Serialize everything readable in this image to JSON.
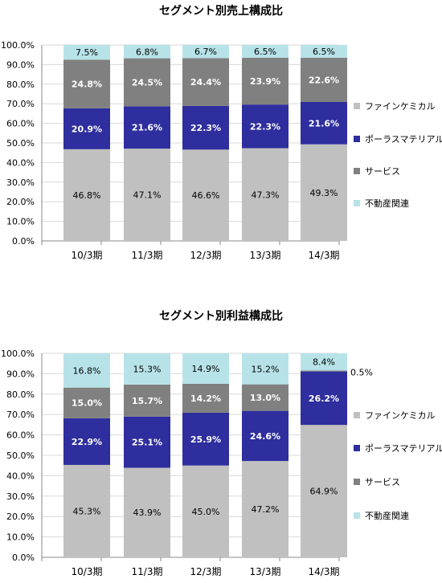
{
  "charts": [
    {
      "title": "セグメント別売上構成比",
      "legend": [
        {
          "label": "ファインケミカル",
          "color": "#c0c0c0"
        },
        {
          "label": "ポーラスマテリアル",
          "color": "#2e2e9e"
        },
        {
          "label": "サービス",
          "color": "#808080"
        },
        {
          "label": "不動産関連",
          "color": "#b7e3e8"
        }
      ]
    },
    {
      "title": "セグメント別利益構成比",
      "legend": [
        {
          "label": "ファインケミカル",
          "color": "#c0c0c0"
        },
        {
          "label": "ポーラスマテリアル",
          "color": "#2e2e9e"
        },
        {
          "label": "サービス",
          "color": "#808080"
        },
        {
          "label": "不動産関連",
          "color": "#b7e3e8"
        }
      ]
    }
  ],
  "chart_data": [
    {
      "type": "bar",
      "stacked": true,
      "title": "セグメント別売上構成比",
      "categories": [
        "10/3期",
        "11/3期",
        "12/3期",
        "13/3期",
        "14/3期"
      ],
      "ylim": [
        0,
        100
      ],
      "yticks": [
        "0.0%",
        "10.0%",
        "20.0%",
        "30.0%",
        "40.0%",
        "50.0%",
        "60.0%",
        "70.0%",
        "80.0%",
        "90.0%",
        "100.0%"
      ],
      "legend_position": "right",
      "series": [
        {
          "name": "ファインケミカル",
          "color": "#c0c0c0",
          "values": [
            46.8,
            47.1,
            46.6,
            47.3,
            49.3
          ],
          "labels": [
            "46.8%",
            "47.1%",
            "46.6%",
            "47.3%",
            "49.3%"
          ]
        },
        {
          "name": "ポーラスマテリアル",
          "color": "#2e2e9e",
          "values": [
            20.9,
            21.6,
            22.3,
            22.3,
            21.6
          ],
          "labels": [
            "20.9%",
            "21.6%",
            "22.3%",
            "22.3%",
            "21.6%"
          ]
        },
        {
          "name": "サービス",
          "color": "#808080",
          "values": [
            24.8,
            24.5,
            24.4,
            23.9,
            22.6
          ],
          "labels": [
            "24.8%",
            "24.5%",
            "24.4%",
            "23.9%",
            "22.6%"
          ]
        },
        {
          "name": "不動産関連",
          "color": "#b7e3e8",
          "values": [
            7.5,
            6.8,
            6.7,
            6.5,
            6.5
          ],
          "labels": [
            "7.5%",
            "6.8%",
            "6.7%",
            "6.5%",
            "6.5%"
          ]
        }
      ]
    },
    {
      "type": "bar",
      "stacked": true,
      "title": "セグメント別利益構成比",
      "categories": [
        "10/3期",
        "11/3期",
        "12/3期",
        "13/3期",
        "14/3期"
      ],
      "ylim": [
        0,
        100
      ],
      "yticks": [
        "0.0%",
        "10.0%",
        "20.0%",
        "30.0%",
        "40.0%",
        "50.0%",
        "60.0%",
        "70.0%",
        "80.0%",
        "90.0%",
        "100.0%"
      ],
      "legend_position": "right",
      "series": [
        {
          "name": "ファインケミカル",
          "color": "#c0c0c0",
          "values": [
            45.3,
            43.9,
            45.0,
            47.2,
            64.9
          ],
          "labels": [
            "45.3%",
            "43.9%",
            "45.0%",
            "47.2%",
            "64.9%"
          ]
        },
        {
          "name": "ポーラスマテリアル",
          "color": "#2e2e9e",
          "values": [
            22.9,
            25.1,
            25.9,
            24.6,
            26.2
          ],
          "labels": [
            "22.9%",
            "25.1%",
            "25.9%",
            "24.6%",
            "26.2%"
          ]
        },
        {
          "name": "サービス",
          "color": "#808080",
          "values": [
            15.0,
            15.7,
            14.2,
            13.0,
            0.5
          ],
          "labels": [
            "15.0%",
            "15.7%",
            "14.2%",
            "13.0%",
            "0.5%"
          ]
        },
        {
          "name": "不動産関連",
          "color": "#b7e3e8",
          "values": [
            16.8,
            15.3,
            14.9,
            15.2,
            8.4
          ],
          "labels": [
            "16.8%",
            "15.3%",
            "14.9%",
            "15.2%",
            "8.4%"
          ]
        }
      ]
    }
  ]
}
